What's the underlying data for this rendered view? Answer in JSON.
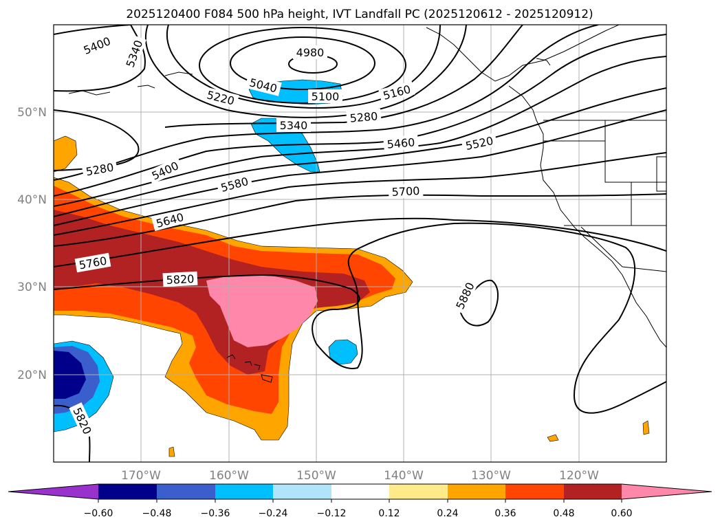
{
  "title": "2025120400 F084 500 hPa height, IVT Landfall PC (2025120612 - 2025120912)",
  "lat_labels": [
    "50°N",
    "40°N",
    "30°N",
    "20°N"
  ],
  "lon_labels": [
    "170°W",
    "160°W",
    "150°W",
    "140°W",
    "130°W",
    "120°W"
  ],
  "contour_labels": [
    "5400",
    "5340",
    "4980",
    "5040",
    "5100",
    "5160",
    "5220",
    "5280",
    "5340",
    "5280",
    "5460",
    "5520",
    "5400",
    "5580",
    "5700",
    "5640",
    "5760",
    "5820",
    "5880",
    "5820"
  ],
  "colorbar": {
    "ticks": [
      "−0.60",
      "−0.48",
      "−0.36",
      "−0.24",
      "−0.12",
      "0.12",
      "0.24",
      "0.36",
      "0.48",
      "0.60"
    ],
    "colors": [
      "#9932cc",
      "#00008b",
      "#3a5fcd",
      "#00bfff",
      "#afe4fa",
      "#ffffff",
      "#ffeb8a",
      "#ffa500",
      "#ff4500",
      "#b22222",
      "#ff88aa"
    ]
  },
  "fill_colors": {
    "orange": "#ffa500",
    "redorange": "#ff4500",
    "darkred": "#b22222",
    "pink": "#ff88aa",
    "skyblue": "#00bfff",
    "royal": "#3a5fcd",
    "navy": "#00008b"
  }
}
